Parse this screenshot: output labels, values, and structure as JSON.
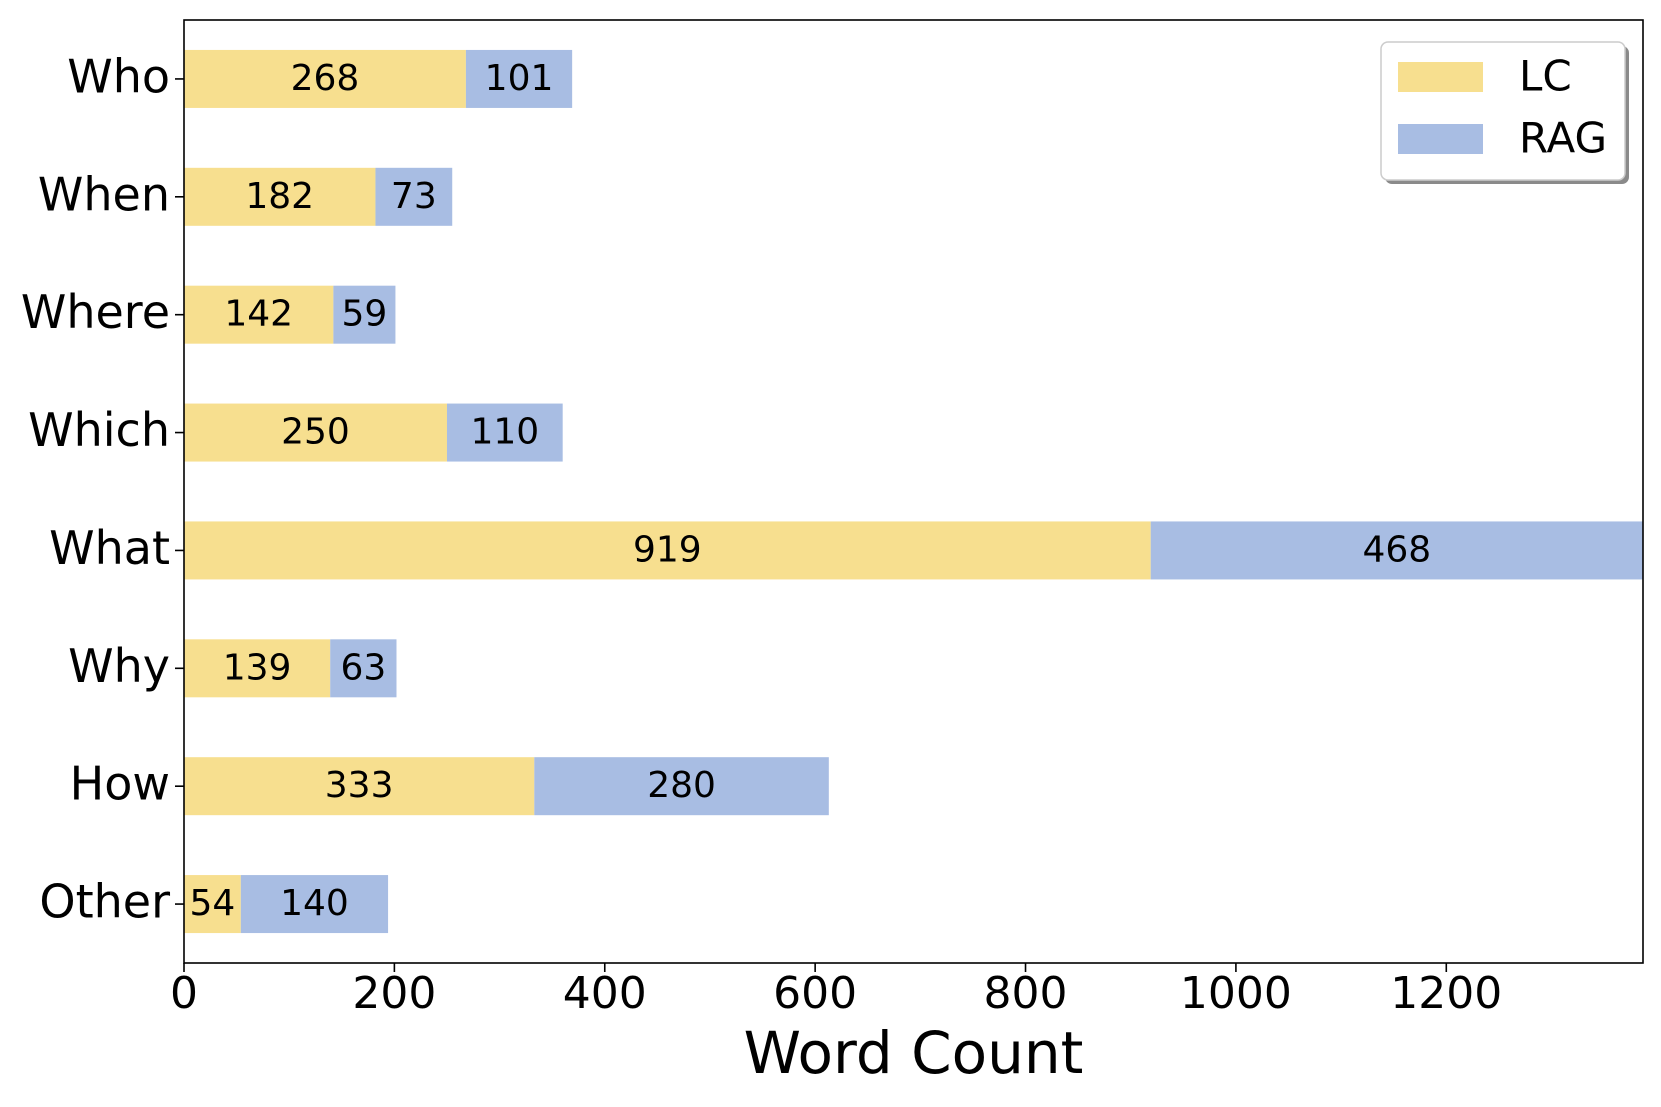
{
  "chart_data": {
    "type": "bar",
    "orientation": "horizontal",
    "stacked": true,
    "title": "",
    "xlabel": "Word Count",
    "ylabel": "",
    "categories": [
      "Who",
      "When",
      "Where",
      "Which",
      "What",
      "Why",
      "How",
      "Other"
    ],
    "series": [
      {
        "name": "LC",
        "color": "#F7DF8F",
        "values": [
          268,
          182,
          142,
          250,
          919,
          139,
          333,
          54
        ]
      },
      {
        "name": "RAG",
        "color": "#A8BDE3",
        "values": [
          101,
          73,
          59,
          110,
          468,
          63,
          280,
          140
        ]
      }
    ],
    "xlim": [
      0,
      1387
    ],
    "xticks": [
      0,
      200,
      400,
      600,
      800,
      1000,
      1200
    ],
    "grid": false,
    "legend_position": "top-right"
  }
}
